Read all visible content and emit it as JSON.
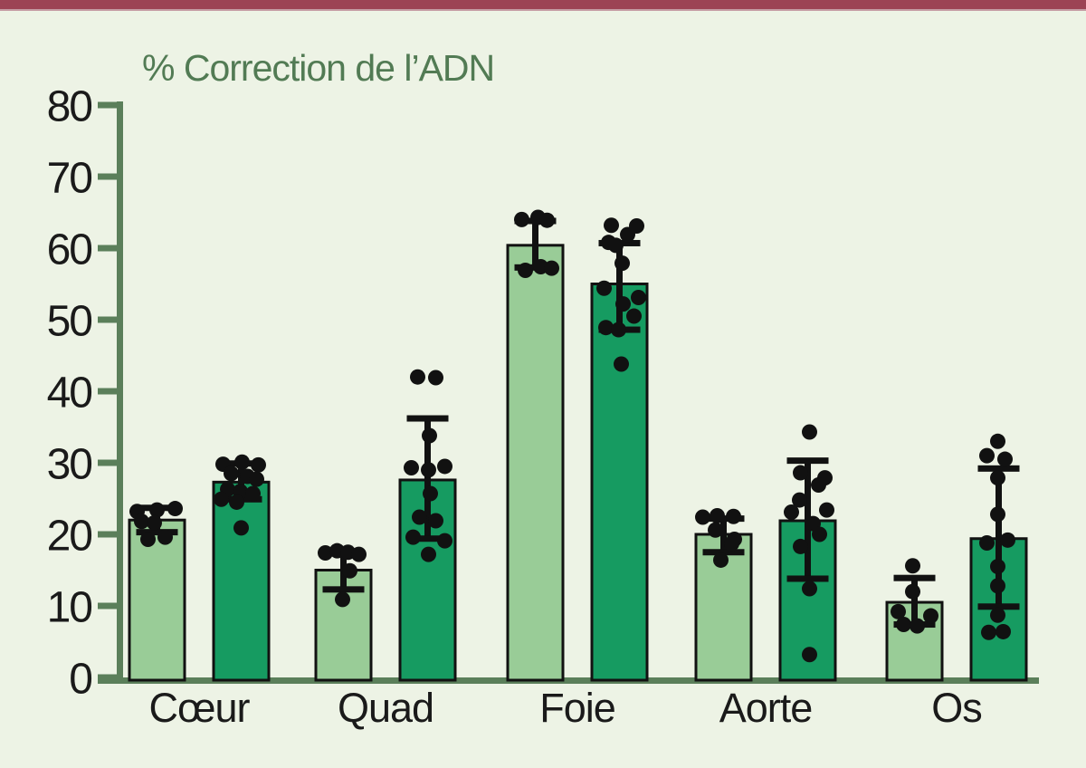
{
  "page": {
    "top_bar_color": "#9c4354",
    "background_color": "#edf3e5"
  },
  "chart_data": {
    "type": "bar",
    "subtype": "grouped-bars-with-scatter-and-error-bars",
    "title": "% Correction de l’ADN",
    "title_color": "#527b54",
    "xlabel": "",
    "ylabel": "",
    "ylim": [
      0,
      80
    ],
    "yticks": [
      0,
      10,
      20,
      30,
      40,
      50,
      60,
      70,
      80
    ],
    "grid": false,
    "legend": "none",
    "axis_color": "#5b7f5a",
    "outline_color": "#111111",
    "point_color": "#111111",
    "categories": [
      "Cœur",
      "Quad",
      "Foie",
      "Aorte",
      "Os"
    ],
    "category_slugs": [
      "coeur",
      "quad",
      "foie",
      "aorte",
      "os"
    ],
    "series": [
      {
        "key": "light-green",
        "color": "#99cc97",
        "values": [
          22.0,
          15.0,
          60.4,
          20.0,
          10.5
        ],
        "err_lo": [
          20.3,
          12.3,
          57.3,
          17.5,
          7.4
        ],
        "err_hi": [
          23.7,
          17.5,
          63.8,
          22.2,
          13.9
        ],
        "points": [
          [
            [
              -22,
              23.2
            ],
            [
              0,
              23.4
            ],
            [
              20,
              23.6
            ],
            [
              -17,
              21.8
            ],
            [
              -3,
              21.6
            ],
            [
              -10,
              19.3
            ],
            [
              9,
              19.6
            ]
          ],
          [
            [
              -20,
              17.4
            ],
            [
              -7,
              17.7
            ],
            [
              5,
              17.5
            ],
            [
              17,
              17.2
            ],
            [
              7,
              14.9
            ],
            [
              -1,
              10.9
            ]
          ],
          [
            [
              -15,
              64.0
            ],
            [
              3,
              64.3
            ],
            [
              13,
              63.9
            ],
            [
              -11,
              56.9
            ],
            [
              6,
              57.4
            ],
            [
              18,
              57.2
            ]
          ],
          [
            [
              -23,
              22.4
            ],
            [
              -7,
              22.6
            ],
            [
              11,
              22.5
            ],
            [
              -9,
              20.6
            ],
            [
              12,
              19.3
            ],
            [
              9,
              18.7
            ],
            [
              -3,
              16.4
            ]
          ],
          [
            [
              -2,
              15.6
            ],
            [
              -2,
              12.0
            ],
            [
              -18,
              9.2
            ],
            [
              18,
              8.6
            ],
            [
              -12,
              7.4
            ],
            [
              3,
              7.2
            ]
          ]
        ]
      },
      {
        "key": "dark-green",
        "color": "#169b61",
        "values": [
          27.3,
          27.6,
          55.0,
          21.9,
          19.4
        ],
        "err_lo": [
          24.9,
          19.4,
          48.6,
          13.8,
          9.9
        ],
        "err_hi": [
          29.9,
          36.2,
          60.7,
          30.3,
          29.2
        ],
        "points": [
          [
            [
              -20,
              29.8
            ],
            [
              1,
              30.1
            ],
            [
              19,
              29.7
            ],
            [
              -11,
              28.5
            ],
            [
              7,
              28.1
            ],
            [
              17,
              27.7
            ],
            [
              -15,
              26.3
            ],
            [
              -1,
              26.0
            ],
            [
              13,
              25.7
            ],
            [
              -22,
              24.9
            ],
            [
              -5,
              24.5
            ],
            [
              0,
              20.9
            ]
          ],
          [
            [
              -11,
              42.0
            ],
            [
              9,
              41.9
            ],
            [
              2,
              33.8
            ],
            [
              -18,
              29.3
            ],
            [
              19,
              29.5
            ],
            [
              1,
              29.0
            ],
            [
              3,
              25.7
            ],
            [
              -9,
              22.4
            ],
            [
              9,
              21.9
            ],
            [
              -16,
              19.6
            ],
            [
              19,
              19.1
            ],
            [
              1,
              17.2
            ]
          ],
          [
            [
              -9,
              63.2
            ],
            [
              19,
              63.1
            ],
            [
              9,
              61.9
            ],
            [
              -12,
              60.8
            ],
            [
              -4,
              60.4
            ],
            [
              3,
              57.9
            ],
            [
              -17,
              54.4
            ],
            [
              21,
              53.1
            ],
            [
              4,
              52.2
            ],
            [
              16,
              50.5
            ],
            [
              -15,
              48.9
            ],
            [
              -1,
              48.6
            ],
            [
              2,
              43.8
            ]
          ],
          [
            [
              2,
              34.3
            ],
            [
              -8,
              28.6
            ],
            [
              19,
              27.9
            ],
            [
              12,
              26.9
            ],
            [
              -9,
              24.8
            ],
            [
              21,
              23.4
            ],
            [
              -18,
              23.1
            ],
            [
              6,
              21.5
            ],
            [
              13,
              20.0
            ],
            [
              -8,
              18.3
            ],
            [
              2,
              12.4
            ],
            [
              2,
              3.2
            ]
          ],
          [
            [
              -1,
              33.0
            ],
            [
              -13,
              31.0
            ],
            [
              7,
              30.5
            ],
            [
              -1,
              27.9
            ],
            [
              -1,
              22.8
            ],
            [
              10,
              19.2
            ],
            [
              -13,
              18.8
            ],
            [
              -1,
              15.5
            ],
            [
              -1,
              12.8
            ],
            [
              -1,
              8.7
            ],
            [
              -11,
              6.3
            ],
            [
              5,
              6.4
            ]
          ]
        ]
      }
    ]
  }
}
